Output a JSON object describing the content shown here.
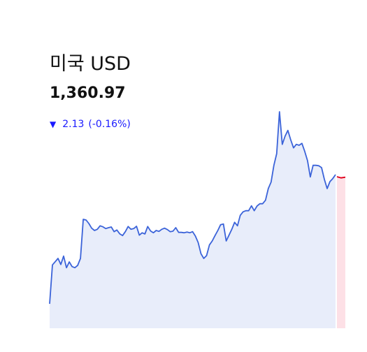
{
  "header": {
    "title": "미국 USD",
    "price": "1,360.97",
    "change_arrow": "▼",
    "change_amount": "2.13",
    "change_percent": "(-0.16%)"
  },
  "colors": {
    "line": "#3b63d9",
    "area": "#e8edfa",
    "line_today": "#e0001b",
    "area_today": "#fde0e6",
    "down": "#1a1aff"
  },
  "chart_data": {
    "type": "area",
    "title": "",
    "xlabel": "",
    "ylabel": "",
    "ylim": [
      1280,
      1385
    ],
    "grid": false,
    "legend": "none",
    "series": [
      {
        "values": [
          1290.5,
          1307.2,
          1308.6,
          1310,
          1307.4,
          1311,
          1306,
          1308.5,
          1306.5,
          1306,
          1307,
          1310,
          1326.8,
          1326.5,
          1325,
          1323,
          1322,
          1322.5,
          1324,
          1323.6,
          1322.8,
          1323.2,
          1323.5,
          1321.5,
          1322.2,
          1320.6,
          1319.8,
          1321.5,
          1323.7,
          1322.5,
          1322.8,
          1323.8,
          1320,
          1321,
          1320.5,
          1323.7,
          1321.8,
          1321,
          1322,
          1321.6,
          1322.5,
          1323,
          1322.4,
          1321.5,
          1321.7,
          1323.2,
          1321.2,
          1321.2,
          1321,
          1321.3,
          1321,
          1321.5,
          1319.6,
          1316.8,
          1312,
          1310,
          1311.2,
          1315.8,
          1317.5,
          1319.8,
          1322,
          1324.5,
          1324.8,
          1317.5,
          1320,
          1322.5,
          1325.5,
          1324,
          1328.5,
          1330,
          1330.5,
          1330.5,
          1332.6,
          1330.5,
          1332.5,
          1333.5,
          1333.5,
          1335,
          1340,
          1342.8,
          1350,
          1355,
          1373,
          1359,
          1362.5,
          1365,
          1361,
          1357.5,
          1359,
          1358.6,
          1359.4,
          1356,
          1352,
          1345,
          1350,
          1350,
          1349.8,
          1349,
          1344,
          1340,
          1343,
          1344.3,
          1346
        ],
        "today": [
          1345.1,
          1344.6,
          1344.9
        ]
      }
    ]
  }
}
